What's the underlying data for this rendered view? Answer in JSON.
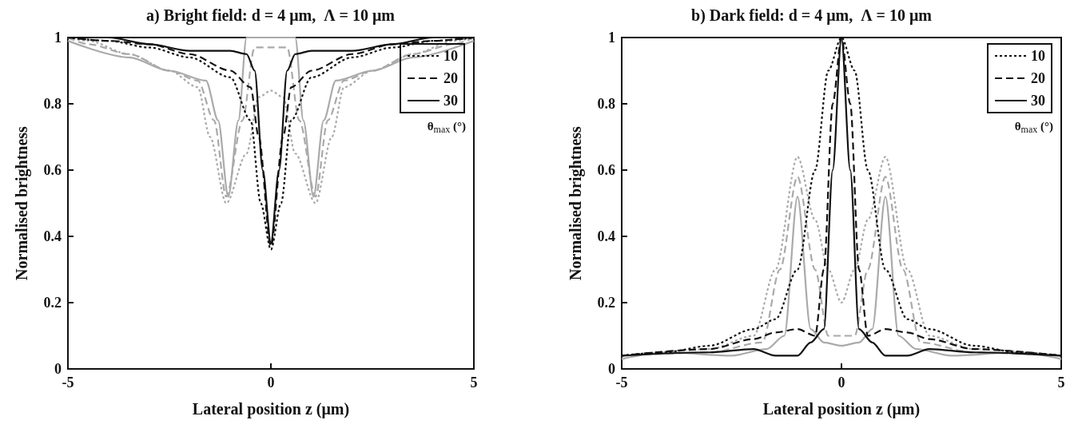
{
  "chart_data": [
    {
      "type": "line",
      "title": "a) Bright field: d = 4 μm,  Λ = 10 μm",
      "xlabel": "Lateral position z (μm)",
      "ylabel": "Normalised brightness",
      "legend_title": "θ$_{max}$ (°)",
      "xlim": [
        -5,
        5
      ],
      "xticks": [
        -5,
        0,
        5
      ],
      "ylim": [
        0,
        1
      ],
      "yticks": [
        0,
        0.2,
        0.4,
        0.6,
        0.8,
        1
      ],
      "grid": false,
      "legend": "top right",
      "marker": "none",
      "series": [
        {
          "name": "10",
          "color": "#111111",
          "line_style": "dotted",
          "x": [
            -5,
            -4,
            -3,
            -2,
            -1,
            -0.5,
            -0.25,
            0,
            0.25,
            0.5,
            1,
            2,
            3,
            4,
            5
          ],
          "values": [
            1,
            0.99,
            0.97,
            0.94,
            0.88,
            0.75,
            0.5,
            0.36,
            0.5,
            0.75,
            0.88,
            0.94,
            0.97,
            0.99,
            1
          ]
        },
        {
          "name": "20",
          "color": "#111111",
          "line_style": "dashed",
          "x": [
            -5,
            -4,
            -3,
            -2,
            -1,
            -0.5,
            -0.3,
            0,
            0.3,
            0.5,
            1,
            2,
            3,
            4,
            5
          ],
          "values": [
            1,
            0.99,
            0.98,
            0.95,
            0.9,
            0.85,
            0.7,
            0.37,
            0.7,
            0.85,
            0.9,
            0.95,
            0.98,
            0.99,
            1
          ]
        },
        {
          "name": "30",
          "color": "#111111",
          "line_style": "solid",
          "x": [
            -5,
            -4,
            -3,
            -2,
            -1,
            -0.6,
            -0.4,
            -0.2,
            0,
            0.2,
            0.4,
            0.6,
            1,
            2,
            3,
            4,
            5
          ],
          "values": [
            1,
            1,
            0.98,
            0.96,
            0.96,
            0.95,
            0.9,
            0.6,
            0.38,
            0.6,
            0.9,
            0.95,
            0.96,
            0.96,
            0.98,
            1,
            1
          ]
        },
        {
          "color": "#aaaaaa",
          "line_style": "dotted",
          "x": [
            -5,
            -4.5,
            -3.5,
            -2.5,
            -1.8,
            -1.5,
            -1.1,
            -0.6,
            -0.3,
            0,
            0.3,
            0.6,
            1.1,
            1.5,
            1.8,
            2.5,
            3.5,
            4.5,
            5
          ],
          "values": [
            1,
            0.99,
            0.95,
            0.9,
            0.85,
            0.7,
            0.5,
            0.65,
            0.82,
            0.84,
            0.82,
            0.65,
            0.5,
            0.7,
            0.85,
            0.9,
            0.95,
            0.99,
            1
          ]
        },
        {
          "color": "#aaaaaa",
          "line_style": "dashed",
          "x": [
            -5,
            -4.5,
            -3.5,
            -2.5,
            -1.8,
            -1.4,
            -1.1,
            -0.7,
            -0.4,
            0,
            0.4,
            0.7,
            1.1,
            1.4,
            1.8,
            2.5,
            3.5,
            4.5,
            5
          ],
          "values": [
            1,
            0.98,
            0.95,
            0.9,
            0.87,
            0.75,
            0.52,
            0.75,
            0.97,
            0.97,
            0.97,
            0.75,
            0.52,
            0.75,
            0.87,
            0.9,
            0.95,
            0.98,
            1
          ]
        },
        {
          "color": "#aaaaaa",
          "line_style": "solid",
          "x": [
            -5,
            -3.5,
            -2.5,
            -1.6,
            -1.3,
            -1.05,
            -0.8,
            -0.6,
            0,
            0.6,
            0.8,
            1.05,
            1.3,
            1.6,
            2.5,
            3.5,
            5
          ],
          "values": [
            0.99,
            0.94,
            0.9,
            0.87,
            0.75,
            0.52,
            0.75,
            1,
            1,
            1,
            0.75,
            0.52,
            0.75,
            0.87,
            0.9,
            0.94,
            0.99
          ]
        }
      ]
    },
    {
      "type": "line",
      "title": "b) Dark field: d = 4 μm,  Λ = 10 μm",
      "xlabel": "Lateral position z (μm)",
      "ylabel": "Normalised brightness",
      "legend_title": "θ$_{max}$ (°)",
      "xlim": [
        -5,
        5
      ],
      "xticks": [
        -5,
        0,
        5
      ],
      "ylim": [
        0,
        1
      ],
      "yticks": [
        0,
        0.2,
        0.4,
        0.6,
        0.8,
        1
      ],
      "grid": false,
      "legend": "top right",
      "marker": "none",
      "series": [
        {
          "name": "10",
          "color": "#111111",
          "line_style": "dotted",
          "x": [
            -5,
            -4,
            -3,
            -2,
            -1.5,
            -1,
            -0.6,
            -0.3,
            0,
            0.3,
            0.6,
            1,
            1.5,
            2,
            3,
            4,
            5
          ],
          "values": [
            0.04,
            0.05,
            0.07,
            0.12,
            0.15,
            0.3,
            0.6,
            0.9,
            1,
            0.9,
            0.6,
            0.3,
            0.15,
            0.12,
            0.07,
            0.05,
            0.04
          ]
        },
        {
          "name": "20",
          "color": "#111111",
          "line_style": "dashed",
          "x": [
            -5,
            -3,
            -2,
            -1.5,
            -1,
            -0.6,
            -0.4,
            -0.2,
            0,
            0.2,
            0.4,
            0.6,
            1,
            1.5,
            2,
            3,
            5
          ],
          "values": [
            0.04,
            0.06,
            0.09,
            0.11,
            0.12,
            0.1,
            0.3,
            0.8,
            1,
            0.8,
            0.3,
            0.1,
            0.12,
            0.11,
            0.09,
            0.06,
            0.04
          ]
        },
        {
          "name": "30",
          "color": "#111111",
          "line_style": "solid",
          "x": [
            -5,
            -3,
            -2,
            -1.5,
            -1,
            -0.7,
            -0.4,
            -0.2,
            0,
            0.2,
            0.4,
            0.7,
            1,
            1.5,
            2,
            3,
            5
          ],
          "values": [
            0.04,
            0.05,
            0.06,
            0.04,
            0.04,
            0.08,
            0.12,
            0.6,
            1,
            0.6,
            0.12,
            0.08,
            0.04,
            0.04,
            0.06,
            0.05,
            0.04
          ]
        },
        {
          "color": "#aaaaaa",
          "line_style": "dotted",
          "x": [
            -5,
            -3,
            -2,
            -1.5,
            -1,
            -0.6,
            -0.3,
            0,
            0.3,
            0.6,
            1,
            1.5,
            2,
            3,
            5
          ],
          "values": [
            0.04,
            0.06,
            0.1,
            0.3,
            0.64,
            0.45,
            0.3,
            0.2,
            0.3,
            0.45,
            0.64,
            0.3,
            0.1,
            0.06,
            0.04
          ]
        },
        {
          "color": "#aaaaaa",
          "line_style": "dashed",
          "x": [
            -5,
            -3,
            -1.8,
            -1.4,
            -1,
            -0.6,
            -0.3,
            0,
            0.3,
            0.6,
            1,
            1.4,
            1.8,
            3,
            5
          ],
          "values": [
            0.04,
            0.05,
            0.08,
            0.3,
            0.58,
            0.3,
            0.1,
            0.1,
            0.1,
            0.3,
            0.58,
            0.3,
            0.08,
            0.05,
            0.04
          ]
        },
        {
          "color": "#aaaaaa",
          "line_style": "solid",
          "x": [
            -5,
            -4,
            -2.5,
            -1.7,
            -1.3,
            -1,
            -0.7,
            -0.4,
            0,
            0.4,
            0.7,
            1,
            1.3,
            1.7,
            2.5,
            4,
            5
          ],
          "values": [
            0.03,
            0.05,
            0.04,
            0.06,
            0.1,
            0.52,
            0.12,
            0.08,
            0.07,
            0.08,
            0.12,
            0.52,
            0.1,
            0.06,
            0.04,
            0.05,
            0.03
          ]
        }
      ]
    }
  ]
}
